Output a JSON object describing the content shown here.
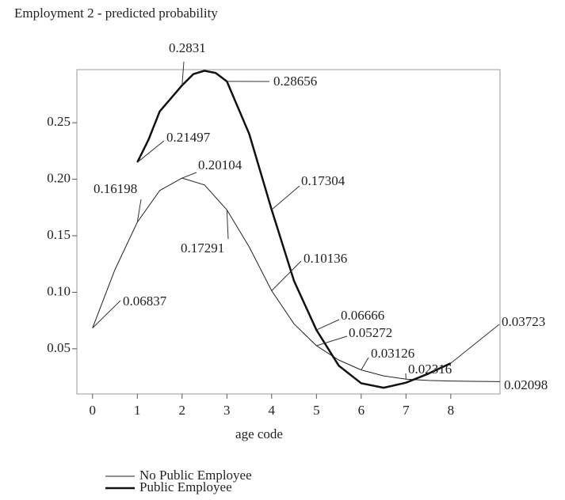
{
  "chart_data": {
    "type": "line",
    "title": "Employment 2 - predicted probability",
    "x_label": "age code",
    "xlim": [
      -0.35,
      9.1
    ],
    "ylim": [
      0.01,
      0.297
    ],
    "xticks": [
      0,
      1,
      2,
      3,
      4,
      5,
      6,
      7,
      8
    ],
    "yticks": [
      0.05,
      {
        "value": 0.1,
        "label": "0.10"
      },
      0.15,
      {
        "value": 0.2,
        "label": "0.20"
      },
      0.25
    ],
    "legend": "bottom-left",
    "series": [
      {
        "name": "No Public Employee",
        "color": "#222222",
        "width": 1,
        "x": [
          0,
          0.5,
          1,
          1.5,
          2,
          2.5,
          3,
          3.5,
          4,
          4.5,
          5,
          5.5,
          6,
          6.5,
          7,
          7.5,
          8,
          8.5,
          9.1
        ],
        "values": [
          0.06837,
          0.12,
          0.16198,
          0.19,
          0.20104,
          0.195,
          0.17291,
          0.14,
          0.10136,
          0.072,
          0.05272,
          0.04,
          0.03126,
          0.026,
          0.02316,
          0.022,
          0.0215,
          0.0212,
          0.02098
        ]
      },
      {
        "name": "Public Employee",
        "color": "#111111",
        "width": 2.5,
        "x": [
          1,
          1.25,
          1.5,
          2,
          2.25,
          2.5,
          2.75,
          3,
          3.5,
          4,
          4.5,
          5,
          5.5,
          6,
          6.5,
          7,
          7.5,
          8
        ],
        "values": [
          0.21497,
          0.235,
          0.26,
          0.2831,
          0.293,
          0.296,
          0.294,
          0.28656,
          0.24,
          0.17304,
          0.11,
          0.06666,
          0.035,
          0.0195,
          0.0155,
          0.02,
          0.028,
          0.03723
        ]
      }
    ],
    "annotations": [
      {
        "text": "0.06837",
        "x": 0,
        "y": 0.06837
      },
      {
        "text": "0.16198",
        "x": 1,
        "y": 0.16198
      },
      {
        "text": "0.20104",
        "x": 2,
        "y": 0.20104
      },
      {
        "text": "0.17291",
        "x": 3,
        "y": 0.17291
      },
      {
        "text": "0.10136",
        "x": 4,
        "y": 0.10136
      },
      {
        "text": "0.05272",
        "x": 5,
        "y": 0.05272
      },
      {
        "text": "0.03126",
        "x": 6,
        "y": 0.03126
      },
      {
        "text": "0.02316",
        "x": 7,
        "y": 0.02316
      },
      {
        "text": "0.02098",
        "x": 9.1,
        "y": 0.02098
      },
      {
        "text": "0.21497",
        "x": 1,
        "y": 0.21497
      },
      {
        "text": "0.2831",
        "x": 2,
        "y": 0.2831
      },
      {
        "text": "0.28656",
        "x": 3,
        "y": 0.28656
      },
      {
        "text": "0.17304",
        "x": 4,
        "y": 0.17304
      },
      {
        "text": "0.06666",
        "x": 5,
        "y": 0.06666
      },
      {
        "text": "0.03723",
        "x": 8,
        "y": 0.03723
      }
    ]
  }
}
